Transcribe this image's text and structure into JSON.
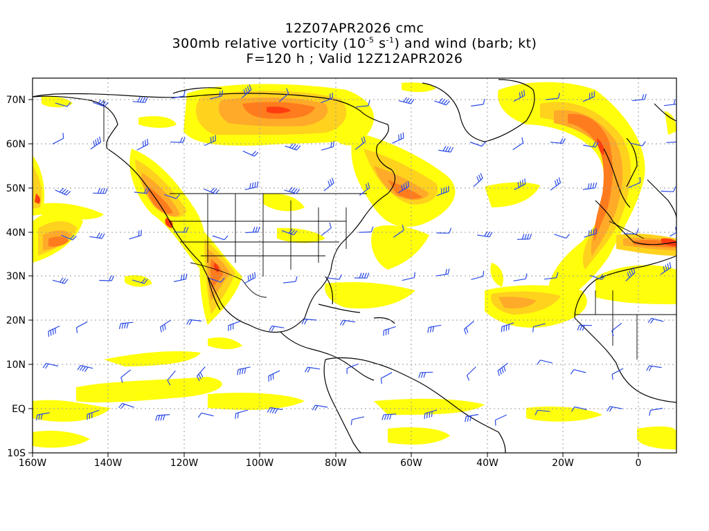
{
  "header": {
    "line1": "12Z07APR2026 cmc",
    "line2_a": "300mb relative vorticity (10",
    "line2_exp1": "-5",
    "line2_b": " s",
    "line2_exp2": "-1",
    "line2_c": ") and wind (barb; kt)",
    "line3": "F=120 h ; Valid 12Z12APR2026"
  },
  "map": {
    "lon_range": [
      -160,
      10
    ],
    "lat_range": [
      -10,
      75
    ],
    "lon_ticks": [
      "160W",
      "140W",
      "120W",
      "100W",
      "80W",
      "60W",
      "40W",
      "20W",
      "0"
    ],
    "lat_ticks": [
      "10S",
      "EQ",
      "10N",
      "20N",
      "30N",
      "40N",
      "50N",
      "60N",
      "70N"
    ],
    "grid": "dotted",
    "colors": {
      "contour_low": "#ffff00",
      "contour_mid": "#ffd21e",
      "contour_high": "#ffaa28",
      "contour_higher": "#ff7c1e",
      "contour_peak": "#ff3c0f",
      "barb": "#2848e6",
      "coastline": "#000000"
    },
    "icons": [
      "wind-barb-icon"
    ]
  }
}
